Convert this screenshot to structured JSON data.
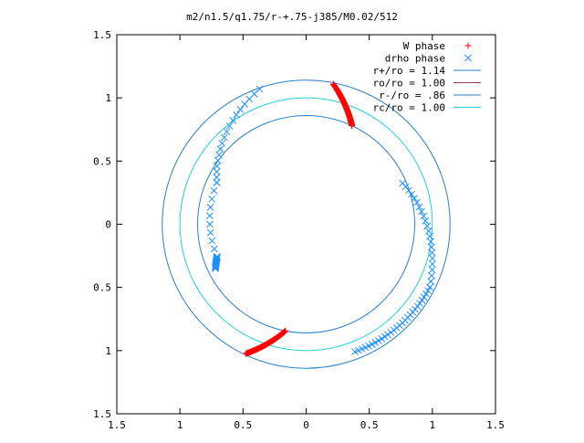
{
  "chart_data": {
    "type": "scatter",
    "title": "m2/n1.5/q1.75/r-+.75-j385/M0.02/512",
    "xlim": [
      -1.5,
      1.5
    ],
    "ylim": [
      -1.5,
      1.5
    ],
    "x_tick_values": [
      -1.5,
      -1,
      -0.5,
      0,
      0.5,
      1,
      1.5
    ],
    "x_tick_labels": [
      "1.5",
      "1",
      "0.5",
      "0",
      "0.5",
      "1",
      "1.5"
    ],
    "y_tick_values": [
      1.5,
      1,
      0.5,
      0,
      -0.5,
      -1,
      -1.5
    ],
    "y_tick_labels": [
      "1.5",
      "1",
      "0.5",
      "0",
      "0.5",
      "1",
      "1.5"
    ],
    "grid": false,
    "legend_position": "top-right",
    "colors": {
      "w_phase": "#ff0000",
      "drho_phase": "#1e90ff",
      "r_plus": "#2a7fc8",
      "ro": "#b0306a",
      "r_minus": "#2a7fc8",
      "rc": "#20d0d8"
    },
    "series": [
      {
        "name": "W phase",
        "marker": "plus",
        "color": "#ff0000",
        "arcs": [
          {
            "r_start": 1.13,
            "r_end": 0.86,
            "angle_start_deg": 79,
            "angle_end_deg": 65,
            "points": 60
          },
          {
            "r_start": 0.86,
            "r_end": 1.13,
            "angle_start_deg": 259,
            "angle_end_deg": 245,
            "points": 60
          }
        ]
      },
      {
        "name": "drho phase",
        "marker": "cross",
        "color": "#1e90ff",
        "arcs": [
          {
            "r_start": 1.13,
            "r_end": 0.78,
            "angle_start_deg": 109,
            "angle_end_deg": 155,
            "points": 18
          },
          {
            "r_start": 0.78,
            "r_end": 0.75,
            "angle_start_deg": 155,
            "angle_end_deg": 200,
            "points": 10
          },
          {
            "r_start": 0.75,
            "r_end": 0.8,
            "angle_start_deg": 200,
            "angle_end_deg": 206,
            "points": 18
          },
          {
            "r_start": 0.83,
            "r_end": 1.1,
            "angle_start_deg": 23,
            "angle_end_deg": -27,
            "points": 22
          },
          {
            "r_start": 1.1,
            "r_end": 1.08,
            "angle_start_deg": -27,
            "angle_end_deg": -69,
            "points": 28
          }
        ]
      },
      {
        "name": "r+/ro = 1.14",
        "type": "circle",
        "radius": 1.14,
        "color": "#2a7fc8"
      },
      {
        "name": "ro/ro = 1.00",
        "type": "circle",
        "radius": 1.0,
        "color": "#b0306a",
        "visible": false
      },
      {
        "name": "r-/ro = .86",
        "type": "circle",
        "radius": 0.86,
        "color": "#2a7fc8"
      },
      {
        "name": "rc/ro = 1.00",
        "type": "circle",
        "radius": 1.0,
        "color": "#20d0d8"
      }
    ],
    "legend": [
      {
        "label": "W phase",
        "kind": "plus",
        "color": "#ff0000"
      },
      {
        "label": "drho phase",
        "kind": "cross",
        "color": "#1e90ff"
      },
      {
        "label": "r+/ro = 1.14",
        "kind": "line",
        "color": "#2a7fc8"
      },
      {
        "label": "ro/ro = 1.00",
        "kind": "line",
        "color": "#b0306a"
      },
      {
        "label": "r-/ro = .86",
        "kind": "line",
        "color": "#2a7fc8"
      },
      {
        "label": "rc/ro = 1.00",
        "kind": "line",
        "color": "#20d0d8"
      }
    ]
  }
}
